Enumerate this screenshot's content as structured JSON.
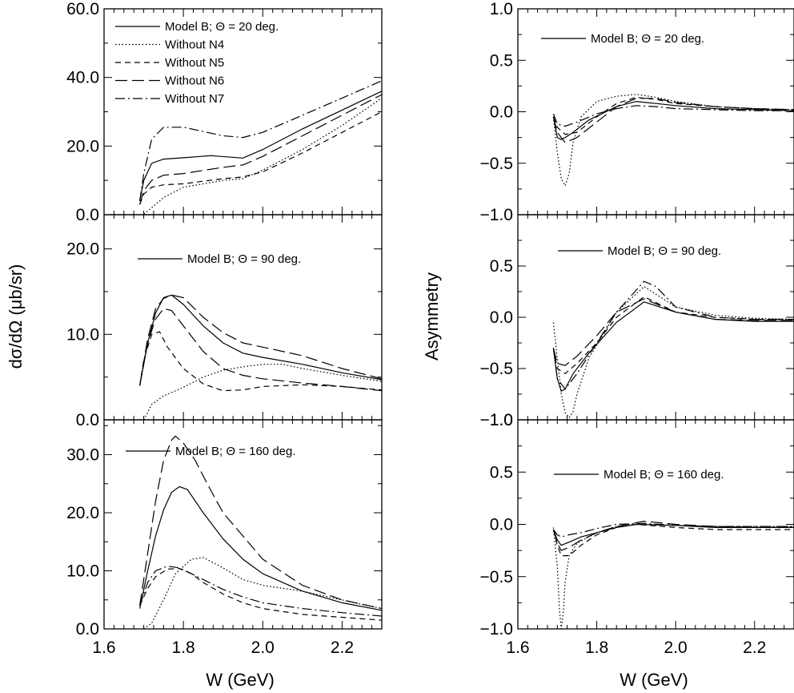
{
  "chart_data": [
    {
      "type": "line",
      "panel": "left-top",
      "ylabel": "dσ/dΩ (μb/sr)",
      "xlabel": "W (GeV)",
      "xlim": [
        1.6,
        2.3
      ],
      "ylim": [
        0,
        60
      ],
      "yticks": [
        "0.0",
        "20.0",
        "40.0",
        "60.0"
      ],
      "legend": [
        "Model B; Θ = 20 deg.",
        "Without N4",
        "Without N5",
        "Without N6",
        "Without N7"
      ],
      "series": [
        {
          "name": "Model B; Θ = 20 deg.",
          "style": "solid",
          "x": [
            1.69,
            1.7,
            1.72,
            1.75,
            1.8,
            1.87,
            1.95,
            2.0,
            2.1,
            2.2,
            2.3
          ],
          "y": [
            4,
            10,
            15,
            16.2,
            16.6,
            17.2,
            16.5,
            19,
            25,
            30.5,
            36
          ]
        },
        {
          "name": "Without N4",
          "style": "dotted",
          "x": [
            1.7,
            1.72,
            1.75,
            1.8,
            1.9,
            1.95,
            2.0,
            2.1,
            2.2,
            2.3
          ],
          "y": [
            0.2,
            2,
            5,
            8,
            10,
            10.5,
            13,
            19,
            26,
            34
          ]
        },
        {
          "name": "Without N5",
          "style": "dashed",
          "x": [
            1.69,
            1.7,
            1.72,
            1.75,
            1.8,
            1.9,
            1.95,
            2.0,
            2.1,
            2.2,
            2.3
          ],
          "y": [
            3,
            6,
            8,
            8.7,
            9,
            10.5,
            11,
            12.5,
            18,
            24,
            30
          ]
        },
        {
          "name": "Without N6",
          "style": "longdash",
          "x": [
            1.69,
            1.7,
            1.72,
            1.75,
            1.8,
            1.9,
            1.95,
            2.0,
            2.1,
            2.2,
            2.3
          ],
          "y": [
            3,
            7,
            10,
            11.5,
            12,
            13.8,
            14.5,
            17,
            23,
            29,
            35
          ]
        },
        {
          "name": "Without N7",
          "style": "dashdot",
          "x": [
            1.69,
            1.7,
            1.72,
            1.75,
            1.8,
            1.9,
            1.95,
            2.0,
            2.1,
            2.2,
            2.3
          ],
          "y": [
            4,
            12,
            22,
            25.5,
            25.5,
            23,
            22.5,
            24,
            29,
            34,
            39
          ]
        }
      ]
    },
    {
      "type": "line",
      "panel": "left-mid",
      "xlim": [
        1.6,
        2.3
      ],
      "ylim": [
        0,
        24
      ],
      "yticks": [
        "0.0",
        "10.0",
        "20.0"
      ],
      "legend": [
        "Model B; Θ = 90 deg."
      ],
      "series": [
        {
          "name": "Model B; Θ = 90 deg.",
          "style": "solid",
          "x": [
            1.69,
            1.71,
            1.73,
            1.75,
            1.77,
            1.8,
            1.85,
            1.9,
            1.95,
            2.0,
            2.1,
            2.2,
            2.3
          ],
          "y": [
            4,
            9,
            12.5,
            14.3,
            14.6,
            13.5,
            11,
            9,
            7.8,
            7.3,
            6.5,
            5.5,
            4.7
          ]
        },
        {
          "name": "Without N4",
          "style": "dotted",
          "x": [
            1.7,
            1.72,
            1.75,
            1.8,
            1.85,
            1.9,
            1.95,
            2.0,
            2.05,
            2.1,
            2.2,
            2.3
          ],
          "y": [
            0,
            1.8,
            2.8,
            3.8,
            5,
            5.8,
            6.2,
            6.5,
            6.5,
            6,
            5.2,
            4.5
          ]
        },
        {
          "name": "Without N5",
          "style": "dashed",
          "x": [
            1.69,
            1.7,
            1.72,
            1.74,
            1.76,
            1.8,
            1.85,
            1.9,
            1.95,
            2.0,
            2.1,
            2.2,
            2.3
          ],
          "y": [
            4,
            7,
            10,
            10.3,
            8.5,
            6,
            4.2,
            3.4,
            3.5,
            3.9,
            4.1,
            3.9,
            3.5
          ]
        },
        {
          "name": "Without N6",
          "style": "longdash",
          "x": [
            1.69,
            1.71,
            1.73,
            1.75,
            1.77,
            1.8,
            1.85,
            1.9,
            1.95,
            2.0,
            2.1,
            2.2,
            2.3
          ],
          "y": [
            4,
            9.5,
            13,
            14.2,
            14.6,
            14.3,
            12,
            10.2,
            9,
            8.5,
            7.5,
            6,
            4.8
          ]
        },
        {
          "name": "Without N7",
          "style": "longdash",
          "x": [
            1.69,
            1.71,
            1.73,
            1.75,
            1.77,
            1.8,
            1.85,
            1.9,
            1.95,
            2.0,
            2.1,
            2.2,
            2.3
          ],
          "y": [
            4,
            9,
            11.8,
            13,
            12.8,
            11,
            8,
            6,
            5.2,
            4.8,
            4.3,
            3.9,
            3.4
          ]
        }
      ]
    },
    {
      "type": "line",
      "panel": "left-bottom",
      "xlim": [
        1.6,
        2.3
      ],
      "ylim": [
        0,
        36
      ],
      "yticks": [
        "0.0",
        "10.0",
        "20.0",
        "30.0"
      ],
      "legend": [
        "Model B; Θ = 160 deg."
      ],
      "series": [
        {
          "name": "Model B; Θ = 160 deg.",
          "style": "solid",
          "x": [
            1.69,
            1.71,
            1.73,
            1.75,
            1.77,
            1.79,
            1.81,
            1.85,
            1.9,
            1.95,
            2.0,
            2.1,
            2.2,
            2.3
          ],
          "y": [
            3.5,
            10,
            16,
            20.5,
            23.5,
            24.5,
            24,
            20,
            15.5,
            12,
            9.5,
            6.5,
            4.5,
            3.2
          ]
        },
        {
          "name": "Without N4",
          "style": "dotted",
          "x": [
            1.7,
            1.72,
            1.75,
            1.78,
            1.82,
            1.85,
            1.9,
            1.95,
            2.0,
            2.1,
            2.2,
            2.3
          ],
          "y": [
            0,
            1,
            5,
            9.5,
            12,
            12.3,
            10.5,
            8.5,
            7.5,
            6.5,
            5,
            3.5
          ]
        },
        {
          "name": "Without N5",
          "style": "dashed",
          "x": [
            1.69,
            1.71,
            1.73,
            1.76,
            1.79,
            1.82,
            1.85,
            1.9,
            1.95,
            2.0,
            2.1,
            2.2,
            2.3
          ],
          "y": [
            4,
            7,
            9,
            10.3,
            10.4,
            9.5,
            8,
            6,
            4.5,
            3.5,
            2.5,
            2,
            1.5
          ]
        },
        {
          "name": "Without N6",
          "style": "longdash",
          "x": [
            1.69,
            1.71,
            1.73,
            1.75,
            1.77,
            1.78,
            1.8,
            1.83,
            1.86,
            1.9,
            1.95,
            2.0,
            2.1,
            2.2,
            2.3
          ],
          "y": [
            4,
            13,
            22,
            29,
            32.5,
            33.2,
            32,
            29,
            25,
            20,
            16,
            12,
            7.5,
            5,
            3.5
          ]
        },
        {
          "name": "Without N7",
          "style": "dashdot",
          "x": [
            1.69,
            1.71,
            1.73,
            1.76,
            1.79,
            1.82,
            1.85,
            1.9,
            1.95,
            2.0,
            2.1,
            2.2,
            2.3
          ],
          "y": [
            4,
            8,
            10,
            10.8,
            10.5,
            9.5,
            8.5,
            6.8,
            5.5,
            4.5,
            3.5,
            2.8,
            2.2
          ]
        }
      ]
    },
    {
      "type": "line",
      "panel": "right-top",
      "ylabel": "Asymmetry",
      "xlabel": "W (GeV)",
      "xlim": [
        1.6,
        2.3
      ],
      "ylim": [
        -1,
        1
      ],
      "yticks": [
        "−1.0",
        "−0.5",
        "0.0",
        "0.5",
        "1.0"
      ],
      "legend": [
        "Model B; Θ = 20 deg."
      ],
      "series": [
        {
          "name": "Model B; Θ = 20 deg.",
          "style": "solid",
          "x": [
            1.69,
            1.7,
            1.71,
            1.72,
            1.74,
            1.78,
            1.85,
            1.9,
            1.95,
            2.0,
            2.1,
            2.2,
            2.3
          ],
          "y": [
            -0.05,
            -0.25,
            -0.27,
            -0.25,
            -0.2,
            -0.08,
            0.05,
            0.1,
            0.08,
            0.06,
            0.03,
            0.02,
            0.01
          ]
        },
        {
          "name": "Without N4",
          "style": "dotted",
          "x": [
            1.69,
            1.7,
            1.71,
            1.72,
            1.73,
            1.74,
            1.76,
            1.8,
            1.85,
            1.9,
            1.95,
            2.0,
            2.1,
            2.2,
            2.3
          ],
          "y": [
            -0.05,
            -0.4,
            -0.65,
            -0.72,
            -0.6,
            -0.3,
            -0.05,
            0.1,
            0.15,
            0.17,
            0.14,
            0.1,
            0.05,
            0.03,
            0.02
          ]
        },
        {
          "name": "Without N5",
          "style": "dashed",
          "x": [
            1.69,
            1.7,
            1.72,
            1.75,
            1.8,
            1.85,
            1.9,
            1.95,
            2.0,
            2.1,
            2.2,
            2.3
          ],
          "y": [
            -0.05,
            -0.15,
            -0.22,
            -0.2,
            -0.05,
            0.08,
            0.14,
            0.12,
            0.08,
            0.05,
            0.03,
            0.02
          ]
        },
        {
          "name": "Without N6",
          "style": "longdash",
          "x": [
            1.69,
            1.7,
            1.72,
            1.75,
            1.8,
            1.85,
            1.9,
            1.95,
            2.0,
            2.1,
            2.2,
            2.3
          ],
          "y": [
            -0.05,
            -0.2,
            -0.3,
            -0.25,
            -0.1,
            0.05,
            0.13,
            0.13,
            0.09,
            0.05,
            0.03,
            0.02
          ]
        },
        {
          "name": "Without N7",
          "style": "dashdot",
          "x": [
            1.69,
            1.7,
            1.72,
            1.75,
            1.8,
            1.85,
            1.9,
            1.95,
            2.0,
            2.1,
            2.2,
            2.3
          ],
          "y": [
            -0.02,
            -0.12,
            -0.14,
            -0.1,
            -0.02,
            0.03,
            0.06,
            0.05,
            0.03,
            0.02,
            0.01,
            0.01
          ]
        }
      ]
    },
    {
      "type": "line",
      "panel": "right-mid",
      "xlim": [
        1.6,
        2.3
      ],
      "ylim": [
        -1,
        1
      ],
      "yticks": [
        "−1.0",
        "−0.5",
        "0.0",
        "0.5"
      ],
      "legend": [
        "Model B; Θ = 90 deg."
      ],
      "series": [
        {
          "name": "Model B; Θ = 90 deg.",
          "style": "solid",
          "x": [
            1.69,
            1.7,
            1.71,
            1.72,
            1.74,
            1.78,
            1.85,
            1.92,
            2.0,
            2.1,
            2.2,
            2.3
          ],
          "y": [
            -0.3,
            -0.6,
            -0.72,
            -0.7,
            -0.55,
            -0.35,
            -0.05,
            0.15,
            0.05,
            -0.02,
            -0.04,
            -0.04
          ]
        },
        {
          "name": "Without N4",
          "style": "dotted",
          "x": [
            1.69,
            1.7,
            1.71,
            1.72,
            1.73,
            1.74,
            1.75,
            1.78,
            1.85,
            1.92,
            2.0,
            2.1,
            2.2,
            2.3
          ],
          "y": [
            -0.05,
            -0.4,
            -0.75,
            -0.93,
            -0.98,
            -0.92,
            -0.75,
            -0.4,
            0.05,
            0.3,
            0.1,
            0.02,
            -0.01,
            -0.02
          ]
        },
        {
          "name": "Without N5",
          "style": "dashed",
          "x": [
            1.69,
            1.7,
            1.72,
            1.75,
            1.8,
            1.85,
            1.92,
            2.0,
            2.1,
            2.2,
            2.3
          ],
          "y": [
            -0.3,
            -0.5,
            -0.55,
            -0.45,
            -0.25,
            0.0,
            0.2,
            0.05,
            0.0,
            -0.02,
            -0.02
          ]
        },
        {
          "name": "Without N6",
          "style": "longdash",
          "x": [
            1.69,
            1.7,
            1.72,
            1.75,
            1.8,
            1.85,
            1.92,
            2.0,
            2.1,
            2.2,
            2.3
          ],
          "y": [
            -0.3,
            -0.45,
            -0.47,
            -0.38,
            -0.18,
            0.05,
            0.18,
            0.05,
            -0.02,
            -0.03,
            -0.03
          ]
        },
        {
          "name": "Without N7",
          "style": "dashdot",
          "x": [
            1.69,
            1.7,
            1.72,
            1.75,
            1.8,
            1.85,
            1.92,
            1.95,
            2.0,
            2.1,
            2.2,
            2.3
          ],
          "y": [
            -0.3,
            -0.6,
            -0.7,
            -0.55,
            -0.25,
            0.05,
            0.35,
            0.3,
            0.1,
            0.0,
            -0.02,
            -0.02
          ]
        }
      ]
    },
    {
      "type": "line",
      "panel": "right-bottom",
      "xlim": [
        1.6,
        2.3
      ],
      "ylim": [
        -1,
        1
      ],
      "yticks": [
        "−1.0",
        "−0.5",
        "0.0",
        "0.5",
        "1.0"
      ],
      "xticks": [
        "1.6",
        "1.8",
        "2.0",
        "2.2"
      ],
      "legend": [
        "Model B; Θ = 160 deg."
      ],
      "series": [
        {
          "name": "Model B; Θ = 160 deg.",
          "style": "solid",
          "x": [
            1.69,
            1.7,
            1.71,
            1.73,
            1.76,
            1.8,
            1.85,
            1.9,
            2.0,
            2.1,
            2.2,
            2.3
          ],
          "y": [
            -0.05,
            -0.15,
            -0.2,
            -0.17,
            -0.12,
            -0.08,
            -0.03,
            0.0,
            -0.01,
            -0.03,
            -0.03,
            -0.03
          ]
        },
        {
          "name": "Without N4",
          "style": "dotted",
          "x": [
            1.69,
            1.7,
            1.705,
            1.71,
            1.715,
            1.72,
            1.73,
            1.75,
            1.8,
            1.85,
            1.9,
            2.0,
            2.1,
            2.2,
            2.3
          ],
          "y": [
            -0.03,
            -0.4,
            -0.8,
            -1.0,
            -0.85,
            -0.55,
            -0.3,
            -0.18,
            -0.08,
            -0.02,
            0.0,
            -0.01,
            -0.02,
            -0.02,
            -0.02
          ]
        },
        {
          "name": "Without N5",
          "style": "dashed",
          "x": [
            1.69,
            1.7,
            1.71,
            1.73,
            1.76,
            1.8,
            1.85,
            1.9,
            2.0,
            2.1,
            2.2,
            2.3
          ],
          "y": [
            -0.05,
            -0.2,
            -0.3,
            -0.3,
            -0.2,
            -0.1,
            -0.03,
            0.0,
            -0.03,
            -0.05,
            -0.05,
            -0.05
          ]
        },
        {
          "name": "Without N6",
          "style": "longdash",
          "x": [
            1.69,
            1.7,
            1.71,
            1.73,
            1.76,
            1.8,
            1.85,
            1.92,
            2.0,
            2.1,
            2.2,
            2.3
          ],
          "y": [
            -0.05,
            -0.18,
            -0.25,
            -0.22,
            -0.15,
            -0.08,
            -0.02,
            0.03,
            0.0,
            -0.02,
            -0.03,
            -0.03
          ]
        },
        {
          "name": "Without N7",
          "style": "dashdot",
          "x": [
            1.69,
            1.7,
            1.71,
            1.73,
            1.76,
            1.8,
            1.85,
            1.92,
            2.0,
            2.1,
            2.2,
            2.3
          ],
          "y": [
            -0.05,
            -0.1,
            -0.12,
            -0.1,
            -0.08,
            -0.04,
            0.0,
            0.01,
            -0.01,
            -0.02,
            -0.02,
            -0.02
          ]
        }
      ]
    }
  ],
  "axes": {
    "left_ylabel": "dσ/dΩ (μb/sr)",
    "right_ylabel": "Asymmetry",
    "xlabel": "W (GeV)",
    "xticks": [
      "1.6",
      "1.8",
      "2.0",
      "2.2"
    ]
  }
}
